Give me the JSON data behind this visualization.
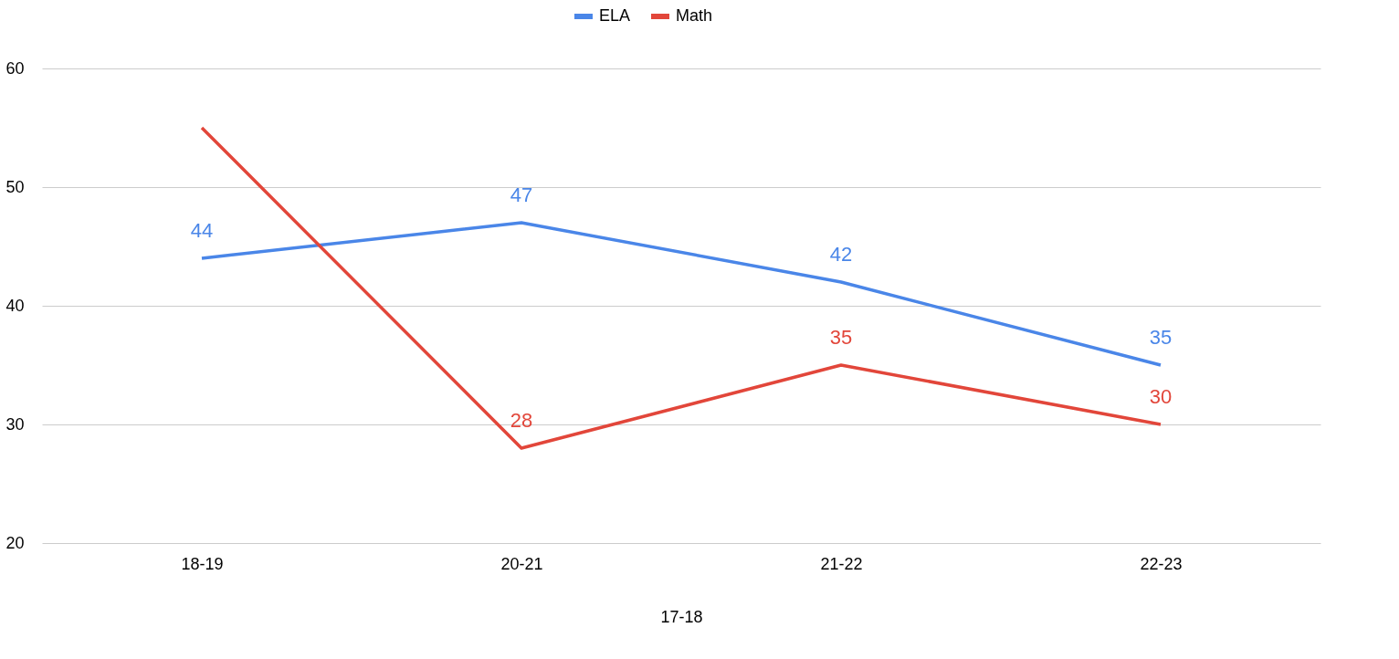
{
  "chart_data": {
    "type": "line",
    "xlabel": "17-18",
    "categories": [
      "18-19",
      "20-21",
      "21-22",
      "22-23"
    ],
    "series": [
      {
        "name": "ELA",
        "color": "#4a86e8",
        "values": [
          44,
          47,
          42,
          35
        ],
        "value_labels": [
          "44",
          "47",
          "42",
          "35"
        ]
      },
      {
        "name": "Math",
        "color": "#e2463a",
        "values": [
          55,
          28,
          35,
          30
        ],
        "value_labels": [
          null,
          "28",
          "35",
          "30"
        ]
      }
    ],
    "ylim": [
      20,
      60
    ],
    "yticks": [
      20,
      30,
      40,
      50,
      60
    ],
    "grid": "y",
    "legend": "top",
    "marker": "none",
    "line_style": "solid"
  }
}
